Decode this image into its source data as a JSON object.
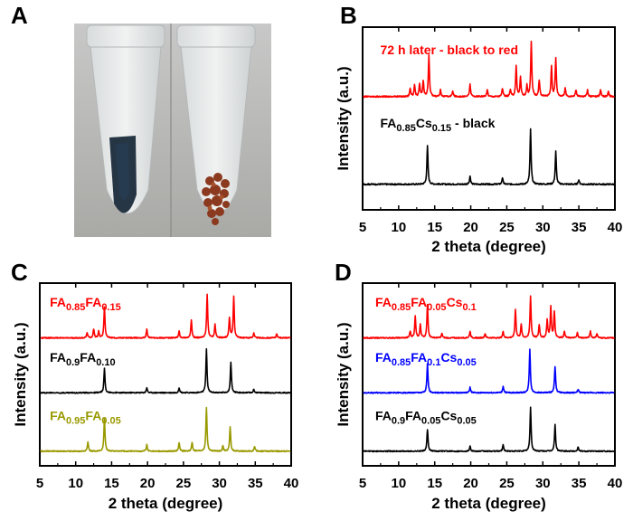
{
  "panel_labels": {
    "a": "A",
    "b": "B",
    "c": "C",
    "d": "D"
  },
  "photo": {
    "description_icon": "vial-photo-icon"
  },
  "chart_data": [
    {
      "id": "B",
      "type": "line",
      "xlabel": "2 theta (degree)",
      "ylabel": "Intensity (a.u.)",
      "xlim": [
        5,
        40
      ],
      "xticks": [
        "5",
        "10",
        "15",
        "20",
        "25",
        "30",
        "35",
        "40"
      ],
      "grid": false,
      "series": [
        {
          "name": "72 h later - black to red",
          "label_parts": [
            {
              "t": "72 h later - black to red",
              "sub": false
            }
          ],
          "color": "#ff0000",
          "peaks": [
            [
              11.6,
              0.15
            ],
            [
              12.2,
              0.2
            ],
            [
              12.9,
              0.22
            ],
            [
              13.4,
              0.28
            ],
            [
              14.2,
              0.75
            ],
            [
              15.8,
              0.12
            ],
            [
              17.5,
              0.1
            ],
            [
              19.9,
              0.22
            ],
            [
              22.3,
              0.12
            ],
            [
              24.4,
              0.15
            ],
            [
              25.5,
              0.12
            ],
            [
              26.3,
              0.55
            ],
            [
              26.9,
              0.35
            ],
            [
              27.8,
              0.2
            ],
            [
              28.4,
              1.0
            ],
            [
              29.5,
              0.3
            ],
            [
              31.2,
              0.55
            ],
            [
              31.8,
              0.7
            ],
            [
              33.1,
              0.15
            ],
            [
              34.6,
              0.12
            ],
            [
              36.2,
              0.12
            ],
            [
              38.0,
              0.12
            ],
            [
              39.1,
              0.1
            ]
          ]
        },
        {
          "name": "FA0.85Cs0.15 - black",
          "label_parts": [
            {
              "t": "FA",
              "sub": false
            },
            {
              "t": "0.85",
              "sub": true
            },
            {
              "t": "Cs",
              "sub": false
            },
            {
              "t": "0.15",
              "sub": true
            },
            {
              "t": " - black",
              "sub": false
            }
          ],
          "color": "#000000",
          "peaks": [
            [
              14.0,
              0.7
            ],
            [
              19.9,
              0.15
            ],
            [
              24.4,
              0.12
            ],
            [
              28.3,
              1.0
            ],
            [
              31.8,
              0.6
            ],
            [
              35.0,
              0.08
            ]
          ]
        }
      ]
    },
    {
      "id": "C",
      "type": "line",
      "xlabel": "2 theta (degree)",
      "ylabel": "Intensity (a.u.)",
      "xlim": [
        5,
        40
      ],
      "xticks": [
        "5",
        "10",
        "15",
        "20",
        "25",
        "30",
        "35",
        "40"
      ],
      "grid": false,
      "series": [
        {
          "name": "FA0.85FA0.15",
          "label_parts": [
            {
              "t": "FA",
              "sub": false
            },
            {
              "t": "0.85",
              "sub": true
            },
            {
              "t": "FA",
              "sub": false
            },
            {
              "t": "0.15",
              "sub": true
            }
          ],
          "color": "#ff0000",
          "peaks": [
            [
              11.6,
              0.12
            ],
            [
              12.5,
              0.2
            ],
            [
              13.2,
              0.15
            ],
            [
              14.0,
              0.7
            ],
            [
              19.9,
              0.2
            ],
            [
              24.4,
              0.15
            ],
            [
              26.1,
              0.4
            ],
            [
              28.3,
              1.0
            ],
            [
              29.4,
              0.3
            ],
            [
              31.4,
              0.45
            ],
            [
              32.0,
              0.95
            ],
            [
              34.8,
              0.12
            ],
            [
              38.0,
              0.1
            ]
          ]
        },
        {
          "name": "FA0.9FA0.10",
          "label_parts": [
            {
              "t": "FA",
              "sub": false
            },
            {
              "t": "0.9",
              "sub": true
            },
            {
              "t": "FA",
              "sub": false
            },
            {
              "t": "0.10",
              "sub": true
            }
          ],
          "color": "#000000",
          "peaks": [
            [
              14.0,
              0.55
            ],
            [
              19.9,
              0.12
            ],
            [
              24.4,
              0.12
            ],
            [
              28.2,
              1.0
            ],
            [
              31.6,
              0.7
            ],
            [
              34.8,
              0.08
            ]
          ]
        },
        {
          "name": "FA0.95FA0.05",
          "label_parts": [
            {
              "t": "FA",
              "sub": false
            },
            {
              "t": "0.95",
              "sub": true
            },
            {
              "t": "FA",
              "sub": false
            },
            {
              "t": "0.05",
              "sub": true
            }
          ],
          "color": "#999900",
          "peaks": [
            [
              11.7,
              0.22
            ],
            [
              14.0,
              0.75
            ],
            [
              19.9,
              0.15
            ],
            [
              24.4,
              0.2
            ],
            [
              26.2,
              0.2
            ],
            [
              28.2,
              1.0
            ],
            [
              30.5,
              0.12
            ],
            [
              31.5,
              0.55
            ],
            [
              34.9,
              0.1
            ]
          ]
        }
      ]
    },
    {
      "id": "D",
      "type": "line",
      "xlabel": "2 theta (degree)",
      "ylabel": "Intensity (a.u.)",
      "xlim": [
        5,
        40
      ],
      "xticks": [
        "5",
        "10",
        "15",
        "20",
        "25",
        "30",
        "35",
        "40"
      ],
      "grid": false,
      "series": [
        {
          "name": "FA0.85FA0.05Cs0.1",
          "label_parts": [
            {
              "t": "FA",
              "sub": false
            },
            {
              "t": "0.85",
              "sub": true
            },
            {
              "t": "FA",
              "sub": false
            },
            {
              "t": "0.05",
              "sub": true
            },
            {
              "t": "Cs",
              "sub": false
            },
            {
              "t": "0.1",
              "sub": true
            }
          ],
          "color": "#ff0000",
          "peaks": [
            [
              11.6,
              0.15
            ],
            [
              12.3,
              0.5
            ],
            [
              13.0,
              0.3
            ],
            [
              14.0,
              0.75
            ],
            [
              16.0,
              0.1
            ],
            [
              19.9,
              0.15
            ],
            [
              22.0,
              0.1
            ],
            [
              24.5,
              0.15
            ],
            [
              26.2,
              0.65
            ],
            [
              27.0,
              0.3
            ],
            [
              28.3,
              0.95
            ],
            [
              29.5,
              0.3
            ],
            [
              30.6,
              0.4
            ],
            [
              31.1,
              0.7
            ],
            [
              31.6,
              0.6
            ],
            [
              33.0,
              0.15
            ],
            [
              34.8,
              0.12
            ],
            [
              36.6,
              0.15
            ],
            [
              37.5,
              0.1
            ]
          ]
        },
        {
          "name": "FA0.85FA0.1Cs0.05",
          "label_parts": [
            {
              "t": "FA",
              "sub": false
            },
            {
              "t": "0.85",
              "sub": true
            },
            {
              "t": "FA",
              "sub": false
            },
            {
              "t": "0.1",
              "sub": true
            },
            {
              "t": "Cs",
              "sub": false
            },
            {
              "t": "0.05",
              "sub": true
            }
          ],
          "color": "#0000ff",
          "peaks": [
            [
              14.0,
              0.65
            ],
            [
              19.9,
              0.12
            ],
            [
              24.5,
              0.15
            ],
            [
              28.2,
              1.0
            ],
            [
              31.7,
              0.6
            ],
            [
              34.9,
              0.08
            ]
          ]
        },
        {
          "name": "FA0.9FA0.05Cs0.05",
          "label_parts": [
            {
              "t": "FA",
              "sub": false
            },
            {
              "t": "0.9",
              "sub": true
            },
            {
              "t": "FA",
              "sub": false
            },
            {
              "t": "0.05",
              "sub": true
            },
            {
              "t": "Cs",
              "sub": false
            },
            {
              "t": "0.05",
              "sub": true
            }
          ],
          "color": "#000000",
          "peaks": [
            [
              14.0,
              0.5
            ],
            [
              19.9,
              0.12
            ],
            [
              24.5,
              0.15
            ],
            [
              28.3,
              1.0
            ],
            [
              31.7,
              0.6
            ],
            [
              34.9,
              0.1
            ]
          ]
        }
      ]
    }
  ]
}
